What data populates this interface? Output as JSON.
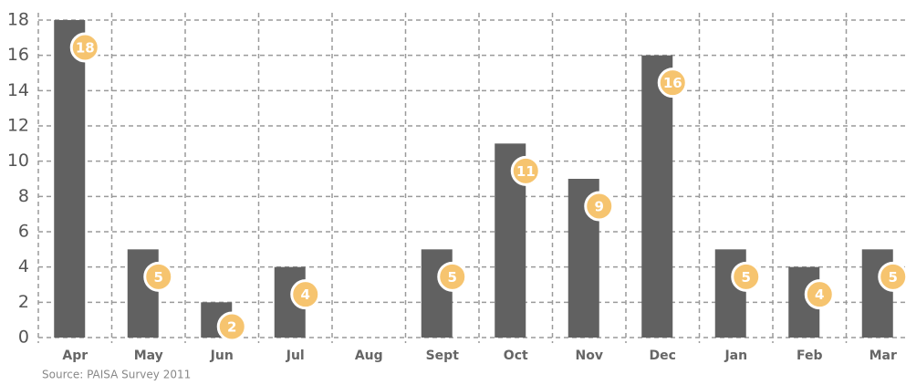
{
  "chart_data": {
    "type": "bar",
    "categories": [
      "Apr",
      "May",
      "Jun",
      "Jul",
      "Aug",
      "Sept",
      "Oct",
      "Nov",
      "Dec",
      "Jan",
      "Feb",
      "Mar"
    ],
    "values": [
      18,
      5,
      2,
      4,
      null,
      5,
      11,
      9,
      16,
      5,
      4,
      5
    ],
    "color": "#616161",
    "label_color": "#f6c46f",
    "ylim": [
      0,
      18
    ],
    "yticks": [
      0,
      2,
      4,
      6,
      8,
      10,
      12,
      14,
      16,
      18
    ],
    "grid": true,
    "source": "Source: PAISA Survey 2011"
  }
}
